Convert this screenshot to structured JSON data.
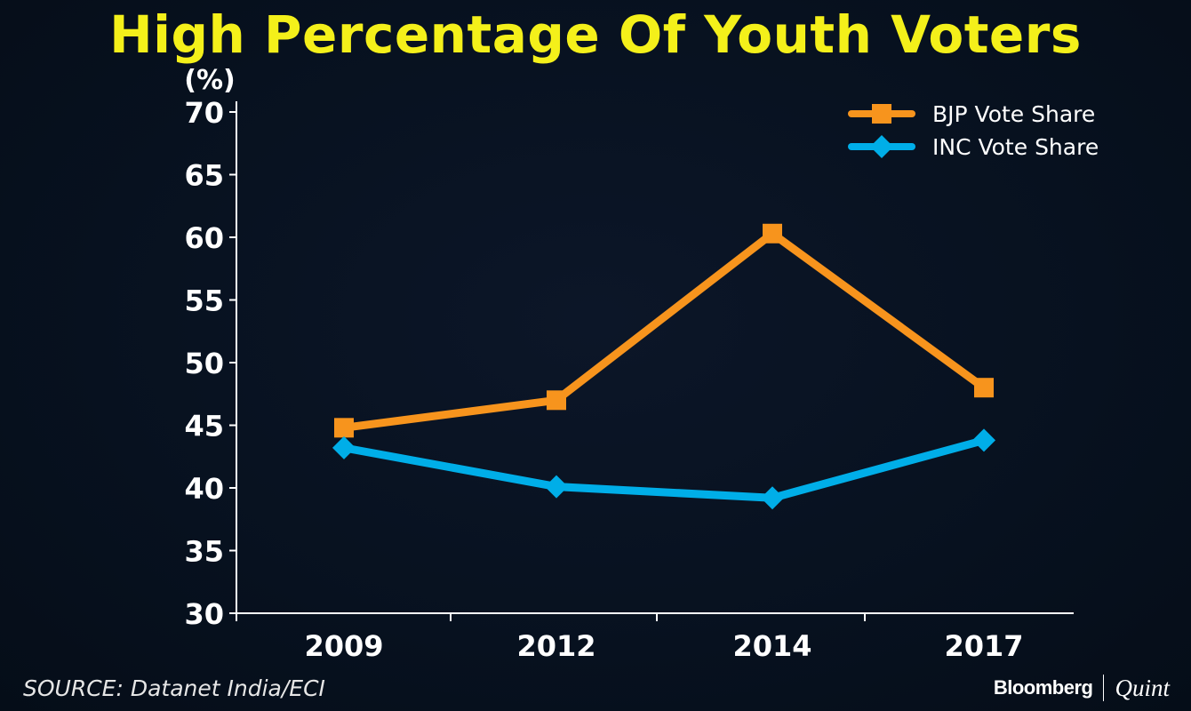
{
  "chart_data": {
    "type": "line",
    "title": "High Percentage Of Youth Voters",
    "ylabel": "(%)",
    "xlabel": "",
    "categories": [
      "2009",
      "2012",
      "2014",
      "2017"
    ],
    "ylim": [
      30,
      70
    ],
    "yticks": [
      30,
      35,
      40,
      45,
      50,
      55,
      60,
      65,
      70
    ],
    "grid": false,
    "legend_position": "top-right",
    "series": [
      {
        "name": "BJP Vote Share",
        "marker": "square",
        "color": "#f7941d",
        "values": [
          44.8,
          47.0,
          60.3,
          48.0
        ]
      },
      {
        "name": "INC Vote Share",
        "marker": "diamond",
        "color": "#00aee8",
        "values": [
          43.2,
          40.1,
          39.2,
          43.8
        ]
      }
    ]
  },
  "footer": {
    "source": "SOURCE: Datanet India/ECI",
    "brand_left": "Bloomberg",
    "brand_right": "Quint"
  },
  "colors": {
    "title": "#f4f01a",
    "axis": "#ffffff",
    "text": "#ffffff"
  }
}
